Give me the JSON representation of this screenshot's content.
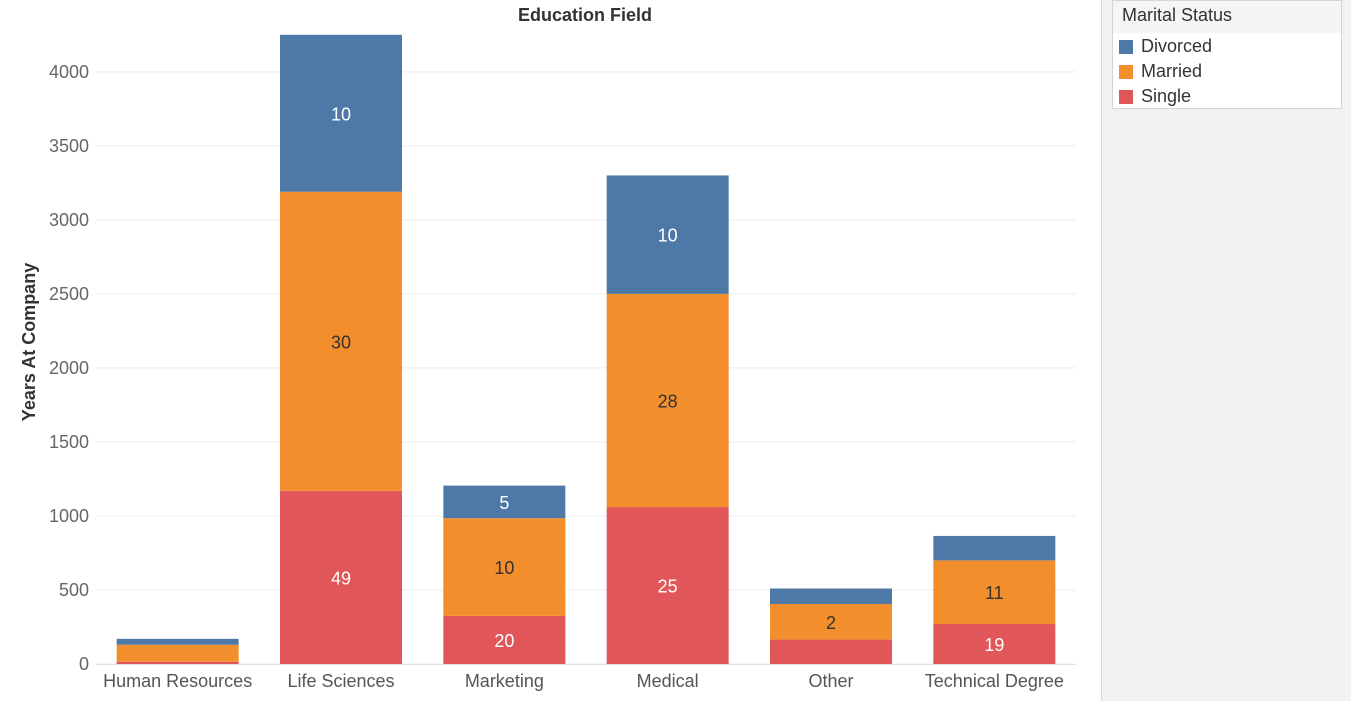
{
  "chart_data": {
    "type": "bar",
    "stacked": true,
    "title": "Education Field",
    "xlabel": "",
    "ylabel": "Years At Company",
    "ylim": [
      0,
      4350
    ],
    "yticks": [
      0,
      500,
      1000,
      1500,
      2000,
      2500,
      3000,
      3500,
      4000
    ],
    "grid": true,
    "legend_position": "right",
    "categories": [
      "Human Resources",
      "Life Sciences",
      "Marketing",
      "Medical",
      "Other",
      "Technical Degree"
    ],
    "series": [
      {
        "name": "Single",
        "color": "#e15759",
        "values": [
          15,
          1170,
          325,
          1060,
          165,
          270
        ],
        "labels": [
          "",
          "49",
          "20",
          "25",
          "",
          "19"
        ],
        "label_color": "#ffffff"
      },
      {
        "name": "Married",
        "color": "#f28e2b",
        "values": [
          115,
          2020,
          660,
          1440,
          240,
          430
        ],
        "labels": [
          "",
          "30",
          "10",
          "28",
          "2",
          "11"
        ],
        "label_color": "#333333"
      },
      {
        "name": "Divorced",
        "color": "#4e79a7",
        "values": [
          40,
          1060,
          220,
          800,
          105,
          165
        ],
        "labels": [
          "",
          "10",
          "5",
          "10",
          "",
          ""
        ],
        "label_color": "#ffffff"
      }
    ]
  },
  "legend": {
    "title": "Marital Status",
    "items": [
      {
        "label": "Divorced",
        "color": "#4e79a7"
      },
      {
        "label": "Married",
        "color": "#f28e2b"
      },
      {
        "label": "Single",
        "color": "#e15759"
      }
    ]
  }
}
